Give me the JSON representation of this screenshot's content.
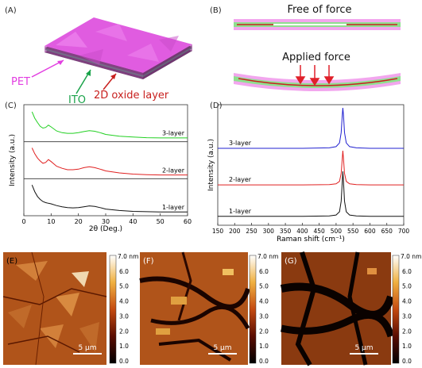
{
  "panels": {
    "A": {
      "label": "(A)",
      "labels": {
        "pet": "PET",
        "ito": "ITO",
        "oxide": "2D oxide layer"
      },
      "colors": {
        "pet": "#e23ee0",
        "ito": "#1aa34a",
        "oxide": "#c8201e"
      }
    },
    "B": {
      "label": "(B)",
      "free_title": "Free of force",
      "applied_title": "Applied force",
      "colors": {
        "pet": "#f2a6ee",
        "ito": "#8fe08f",
        "oxide": "#c82020",
        "arrow": "#e0202a"
      }
    },
    "E": {
      "label": "(E)",
      "scalebar": "5 μm"
    },
    "F": {
      "label": "(F)",
      "scalebar": "5 μm"
    },
    "G": {
      "label": "(G)",
      "scalebar": "5 μm"
    }
  },
  "colorbar": {
    "unit_top": "7.0 nm",
    "ticks": [
      "6.0",
      "5.0",
      "4.0",
      "3.0",
      "2.0",
      "1.0",
      "0.0"
    ]
  },
  "chart_data": [
    {
      "panel": "(C)",
      "type": "line",
      "xlabel": "2θ (Deg.)",
      "ylabel": "Intensity (a.u.)",
      "xlim": [
        0,
        60
      ],
      "xticks": [
        0,
        10,
        20,
        30,
        40,
        50,
        60
      ],
      "series": [
        {
          "name": "3-layer",
          "color": "#22d022",
          "x": [
            3,
            4,
            5,
            6,
            7,
            8,
            9,
            10,
            12,
            14,
            16,
            18,
            20,
            22,
            24,
            26,
            28,
            30,
            35,
            40,
            45,
            50,
            55,
            60
          ],
          "y": [
            0.92,
            0.7,
            0.55,
            0.42,
            0.36,
            0.38,
            0.46,
            0.4,
            0.26,
            0.2,
            0.18,
            0.18,
            0.2,
            0.24,
            0.27,
            0.25,
            0.2,
            0.14,
            0.08,
            0.05,
            0.03,
            0.02,
            0.02,
            0.02
          ]
        },
        {
          "name": "2-layer",
          "color": "#e02020",
          "x": [
            3,
            4,
            5,
            6,
            7,
            8,
            9,
            10,
            12,
            14,
            16,
            18,
            20,
            22,
            24,
            26,
            28,
            30,
            35,
            40,
            45,
            50,
            55,
            60
          ],
          "y": [
            0.95,
            0.75,
            0.6,
            0.5,
            0.42,
            0.45,
            0.55,
            0.48,
            0.32,
            0.25,
            0.2,
            0.2,
            0.22,
            0.27,
            0.3,
            0.27,
            0.22,
            0.16,
            0.09,
            0.05,
            0.03,
            0.02,
            0.02,
            0.02
          ]
        },
        {
          "name": "1-layer",
          "color": "#111111",
          "x": [
            3,
            4,
            5,
            6,
            7,
            8,
            9,
            10,
            12,
            14,
            16,
            18,
            20,
            22,
            24,
            26,
            28,
            30,
            35,
            40,
            45,
            50,
            55,
            60
          ],
          "y": [
            0.95,
            0.72,
            0.55,
            0.45,
            0.38,
            0.34,
            0.32,
            0.3,
            0.24,
            0.2,
            0.17,
            0.16,
            0.17,
            0.2,
            0.23,
            0.21,
            0.17,
            0.12,
            0.07,
            0.04,
            0.03,
            0.02,
            0.02,
            0.02
          ]
        }
      ]
    },
    {
      "panel": "(D)",
      "type": "line",
      "xlabel": "Raman shift (cm⁻¹)",
      "ylabel": "Intensity (a.u.)",
      "xlim": [
        150,
        700
      ],
      "xticks": [
        150,
        200,
        250,
        300,
        350,
        400,
        450,
        500,
        550,
        600,
        650,
        700
      ],
      "series": [
        {
          "name": "3-layer",
          "color": "#2020d0",
          "x": [
            150,
            400,
            480,
            500,
            510,
            515,
            518,
            520,
            522,
            525,
            530,
            540,
            560,
            600,
            700
          ],
          "y": [
            0.02,
            0.02,
            0.03,
            0.06,
            0.15,
            0.4,
            0.8,
            1.0,
            0.8,
            0.4,
            0.15,
            0.06,
            0.03,
            0.02,
            0.02
          ]
        },
        {
          "name": "2-layer",
          "color": "#e02020",
          "x": [
            150,
            400,
            480,
            500,
            510,
            515,
            518,
            520,
            522,
            525,
            530,
            540,
            560,
            600,
            700
          ],
          "y": [
            0.02,
            0.02,
            0.03,
            0.05,
            0.12,
            0.35,
            0.75,
            1.0,
            0.75,
            0.35,
            0.12,
            0.05,
            0.03,
            0.02,
            0.02
          ]
        },
        {
          "name": "1-layer",
          "color": "#111111",
          "x": [
            150,
            400,
            480,
            500,
            510,
            515,
            518,
            520,
            522,
            525,
            530,
            540,
            560,
            600,
            700
          ],
          "y": [
            0.02,
            0.02,
            0.03,
            0.05,
            0.12,
            0.35,
            0.75,
            1.0,
            0.75,
            0.35,
            0.12,
            0.05,
            0.03,
            0.02,
            0.02
          ]
        }
      ]
    }
  ]
}
